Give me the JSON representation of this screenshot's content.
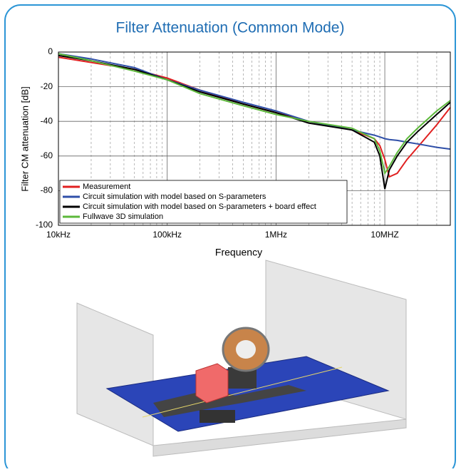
{
  "chart_data": {
    "type": "line",
    "title": "Filter Attenuation (Common Mode)",
    "xlabel": "Frequency",
    "ylabel": "Filter CM attenuation [dB]",
    "xscale": "log",
    "grid": true,
    "minor_grid": true,
    "legend": "lower left",
    "xlim": [
      10000,
      40000000
    ],
    "ylim": [
      -100,
      0
    ],
    "xticks": [
      {
        "value": 10000,
        "label": "10kHz"
      },
      {
        "value": 100000,
        "label": "100kHz"
      },
      {
        "value": 1000000,
        "label": "1MHz"
      },
      {
        "value": 10000000,
        "label": "10MHZ"
      }
    ],
    "yticks": [
      0,
      -20,
      -40,
      -60,
      -80,
      -100
    ],
    "x": [
      10000,
      20000,
      50000,
      100000,
      200000,
      500000,
      1000000,
      2000000,
      5000000,
      8000000,
      9000000,
      10000000,
      11000000,
      13000000,
      16000000,
      20000000,
      30000000,
      40000000
    ],
    "series": [
      {
        "name": "Measurement",
        "color": "#e02020",
        "values": [
          -3,
          -6,
          -10,
          -15,
          -22,
          -30,
          -35,
          -40,
          -45,
          -50,
          -54,
          -62,
          -72,
          -70,
          -62,
          -55,
          -42,
          -32
        ]
      },
      {
        "name": "Circuit simulation with model based on S-parameters",
        "color": "#2f4fa8",
        "values": [
          -1,
          -4,
          -9,
          -16,
          -22,
          -29,
          -34,
          -40,
          -45,
          -48,
          -49,
          -50,
          -50.5,
          -51,
          -52,
          -53,
          -55,
          -56
        ]
      },
      {
        "name": "Circuit simulation with model based on S-parameters + board effect",
        "color": "#000000",
        "values": [
          -2,
          -5,
          -10,
          -16,
          -23,
          -30,
          -35,
          -41,
          -45,
          -52,
          -60,
          -79,
          -68,
          -60,
          -52,
          -46,
          -36,
          -29
        ]
      },
      {
        "name": "Fullwave 3D simulation",
        "color": "#5cb83a",
        "values": [
          -1,
          -5,
          -11,
          -16,
          -24,
          -31,
          -36,
          -40,
          -44,
          -50,
          -57,
          -70,
          -66,
          -58,
          -50,
          -44,
          -34,
          -28
        ]
      }
    ]
  }
}
